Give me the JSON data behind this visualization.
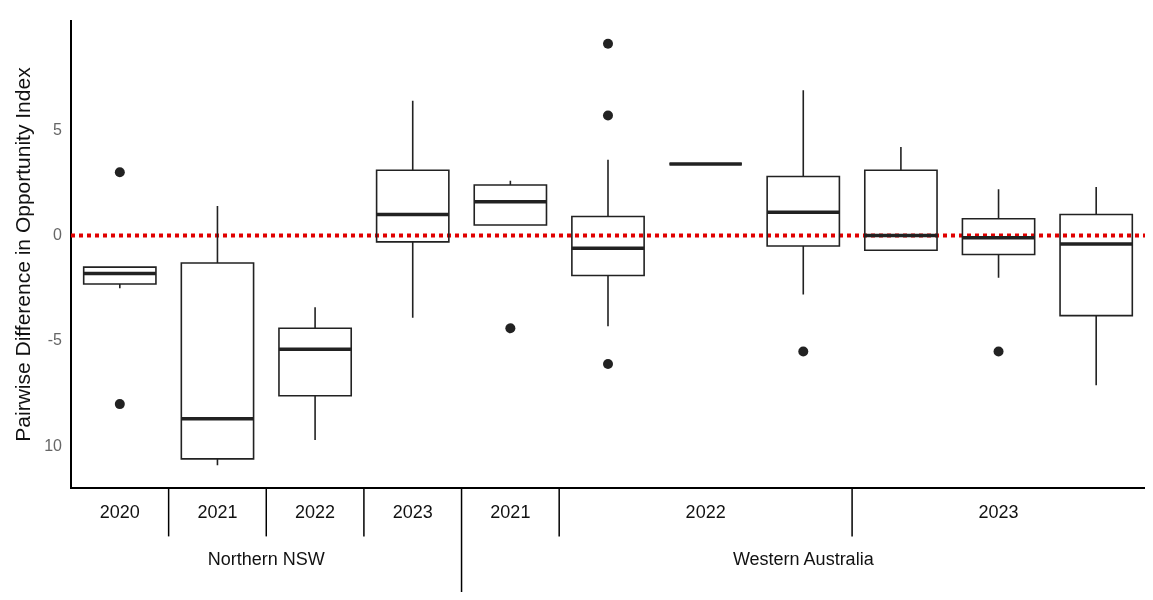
{
  "chart_data": {
    "type": "box",
    "ylabel": "Pairwise Difference in Opportunity Index",
    "categories": [
      "2020",
      "2021",
      "2022",
      "2023",
      "2021",
      null,
      "2022",
      null,
      null,
      "2023",
      null
    ],
    "boxes": [
      {
        "low": -2.5,
        "q1": -2.3,
        "median": -1.8,
        "q3": -1.5,
        "high": -1.5,
        "outliers": [
          3.0,
          -8.0
        ]
      },
      {
        "low": -10.9,
        "q1": -10.6,
        "median": -8.7,
        "q3": -1.3,
        "high": 1.4
      },
      {
        "low": -9.7,
        "q1": -7.6,
        "median": -5.4,
        "q3": -4.4,
        "high": -3.4
      },
      {
        "low": -3.9,
        "q1": -0.3,
        "median": 1.0,
        "q3": 3.1,
        "high": 6.4
      },
      {
        "low": 0.5,
        "q1": 0.5,
        "median": 1.6,
        "q3": 2.4,
        "high": 2.6,
        "outliers": [
          -4.4
        ]
      },
      {
        "low": -4.3,
        "q1": -1.9,
        "median": -0.6,
        "q3": 0.9,
        "high": 3.6,
        "outliers": [
          9.1,
          5.7,
          -6.1
        ]
      },
      {
        "low": 3.4,
        "q1": 3.4,
        "median": 3.4,
        "q3": 3.4,
        "high": 3.4
      },
      {
        "low": -2.8,
        "q1": -0.5,
        "median": 1.1,
        "q3": 2.8,
        "high": 6.9,
        "outliers": [
          -5.5
        ]
      },
      {
        "low": -0.7,
        "q1": -0.7,
        "median": 0.0,
        "q3": 3.1,
        "high": 4.2
      },
      {
        "low": -2.0,
        "q1": -0.9,
        "median": -0.1,
        "q3": 0.8,
        "high": 2.2,
        "outliers": [
          -5.5
        ]
      },
      {
        "low": -7.1,
        "q1": -3.8,
        "median": -0.4,
        "q3": 1.0,
        "high": 2.3
      }
    ],
    "color": "#222222",
    "ylim": [
      -12,
      10.2
    ],
    "yticks": [
      {
        "value": -10,
        "label": "10"
      },
      -5,
      0,
      5
    ],
    "ref_lines": [
      {
        "axis": "y",
        "value": 0,
        "color": "#e00000",
        "line_style": "dotted"
      }
    ],
    "annotations": [
      "Northern NSW",
      "Western Australia"
    ],
    "grid": false,
    "legend": false
  }
}
